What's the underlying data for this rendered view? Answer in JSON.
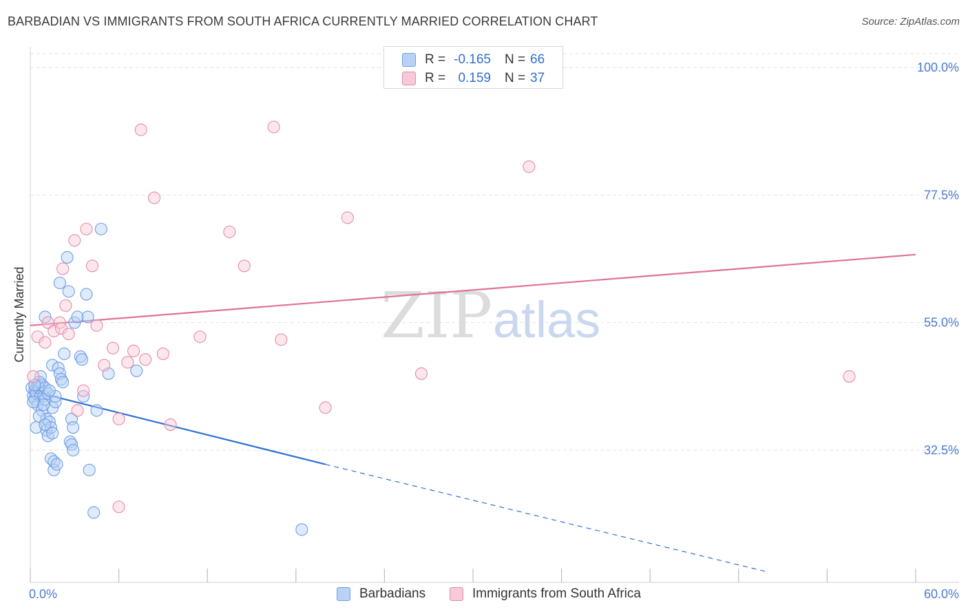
{
  "header": {
    "title": "BARBADIAN VS IMMIGRANTS FROM SOUTH AFRICA CURRENTLY MARRIED CORRELATION CHART",
    "source": "Source: ZipAtlas.com"
  },
  "watermark": {
    "zip": "ZIP",
    "atlas": "atlas"
  },
  "stats": [
    {
      "r_label": "R =",
      "r_value": "-0.165",
      "n_label": "N =",
      "n_value": "66",
      "color": "#6c9ee6",
      "fill": "#b9d1f5"
    },
    {
      "r_label": "R =",
      "r_value": "0.159",
      "n_label": "N =",
      "n_value": "37",
      "color": "#e88aa8",
      "fill": "#f8c9d8"
    }
  ],
  "legend": [
    {
      "label": "Barbadians",
      "color": "#6c9ee6",
      "fill": "#b9d1f5"
    },
    {
      "label": "Immigrants from South Africa",
      "color": "#e88aa8",
      "fill": "#f8c9d8"
    }
  ],
  "chart_data": {
    "type": "scatter",
    "title": "BARBADIAN VS IMMIGRANTS FROM SOUTH AFRICA CURRENTLY MARRIED CORRELATION CHART",
    "xlabel": "",
    "ylabel": "Currently Married",
    "xlim": [
      0,
      60
    ],
    "ylim": [
      12.5,
      104
    ],
    "x_tick_labels": [
      {
        "value": 0,
        "label": "0.0%"
      },
      {
        "value": 60,
        "label": "60.0%"
      }
    ],
    "y_tick_labels": [
      {
        "value": 100,
        "label": "100.0%"
      },
      {
        "value": 77.5,
        "label": "77.5%"
      },
      {
        "value": 55,
        "label": "55.0%"
      },
      {
        "value": 32.5,
        "label": "32.5%"
      }
    ],
    "grid": true,
    "series": [
      {
        "name": "Barbadians",
        "color": "#6c9ee6",
        "fill": "#b9d1f5",
        "trend": {
          "x": [
            0,
            20
          ],
          "y": [
            43.0,
            30.0
          ],
          "extended_to": [
            50,
            11.0
          ]
        },
        "points": [
          [
            0.1,
            43.5
          ],
          [
            0.2,
            42.0
          ],
          [
            0.3,
            43.0
          ],
          [
            0.3,
            41.5
          ],
          [
            0.4,
            42.5
          ],
          [
            0.5,
            40.5
          ],
          [
            0.5,
            44.0
          ],
          [
            0.6,
            43.5
          ],
          [
            0.7,
            42.0
          ],
          [
            0.7,
            45.5
          ],
          [
            0.8,
            44.0
          ],
          [
            0.8,
            39.5
          ],
          [
            0.9,
            42.0
          ],
          [
            1.0,
            41.5
          ],
          [
            1.0,
            43.5
          ],
          [
            1.1,
            38.0
          ],
          [
            1.1,
            36.0
          ],
          [
            1.2,
            42.5
          ],
          [
            1.2,
            35.0
          ],
          [
            1.3,
            37.5
          ],
          [
            1.4,
            36.5
          ],
          [
            1.4,
            31.0
          ],
          [
            1.5,
            47.5
          ],
          [
            1.5,
            40.0
          ],
          [
            1.6,
            29.0
          ],
          [
            1.6,
            30.5
          ],
          [
            1.7,
            41.0
          ],
          [
            1.7,
            42.0
          ],
          [
            1.8,
            30.0
          ],
          [
            1.9,
            47.0
          ],
          [
            2.0,
            46.0
          ],
          [
            2.0,
            62.0
          ],
          [
            2.1,
            45.0
          ],
          [
            2.2,
            44.5
          ],
          [
            2.3,
            49.5
          ],
          [
            2.5,
            66.5
          ],
          [
            2.6,
            60.5
          ],
          [
            2.7,
            34.0
          ],
          [
            2.8,
            33.5
          ],
          [
            2.8,
            38.0
          ],
          [
            2.9,
            36.5
          ],
          [
            2.9,
            32.5
          ],
          [
            3.0,
            55.0
          ],
          [
            3.2,
            56.0
          ],
          [
            3.4,
            49.0
          ],
          [
            3.5,
            48.5
          ],
          [
            3.6,
            42.0
          ],
          [
            3.8,
            60.0
          ],
          [
            3.9,
            56.0
          ],
          [
            4.0,
            29.0
          ],
          [
            4.3,
            21.5
          ],
          [
            4.5,
            39.5
          ],
          [
            4.8,
            71.5
          ],
          [
            5.3,
            46.0
          ],
          [
            7.2,
            46.5
          ],
          [
            18.4,
            18.5
          ],
          [
            1.0,
            56.0
          ],
          [
            0.6,
            44.5
          ],
          [
            0.9,
            40.5
          ],
          [
            1.3,
            43.0
          ],
          [
            0.4,
            36.5
          ],
          [
            0.2,
            41.0
          ],
          [
            0.3,
            44.0
          ],
          [
            0.6,
            38.5
          ],
          [
            1.0,
            37.0
          ],
          [
            1.5,
            35.5
          ]
        ]
      },
      {
        "name": "Immigrants from South Africa",
        "color": "#e88aa8",
        "fill": "#f8c9d8",
        "trend": {
          "x": [
            0,
            60
          ],
          "y": [
            54.5,
            67.0
          ]
        },
        "points": [
          [
            0.2,
            45.5
          ],
          [
            0.5,
            52.5
          ],
          [
            1.0,
            51.5
          ],
          [
            1.2,
            55.0
          ],
          [
            1.6,
            53.5
          ],
          [
            2.0,
            55.0
          ],
          [
            2.1,
            54.0
          ],
          [
            2.2,
            64.5
          ],
          [
            2.4,
            58.0
          ],
          [
            2.6,
            53.0
          ],
          [
            3.0,
            69.5
          ],
          [
            3.2,
            39.5
          ],
          [
            3.6,
            43.0
          ],
          [
            3.8,
            71.5
          ],
          [
            4.2,
            65.0
          ],
          [
            4.5,
            54.5
          ],
          [
            5.0,
            47.5
          ],
          [
            5.6,
            50.5
          ],
          [
            6.0,
            38.0
          ],
          [
            6.6,
            48.0
          ],
          [
            7.0,
            50.0
          ],
          [
            7.5,
            89.0
          ],
          [
            7.8,
            48.5
          ],
          [
            8.4,
            77.0
          ],
          [
            9.0,
            49.5
          ],
          [
            9.5,
            37.0
          ],
          [
            11.5,
            52.5
          ],
          [
            13.5,
            71.0
          ],
          [
            14.5,
            65.0
          ],
          [
            16.5,
            89.5
          ],
          [
            17.0,
            52.0
          ],
          [
            20.0,
            40.0
          ],
          [
            21.5,
            73.5
          ],
          [
            26.5,
            46.0
          ],
          [
            33.8,
            82.5
          ],
          [
            55.5,
            45.5
          ],
          [
            6.0,
            22.5
          ]
        ]
      }
    ]
  }
}
